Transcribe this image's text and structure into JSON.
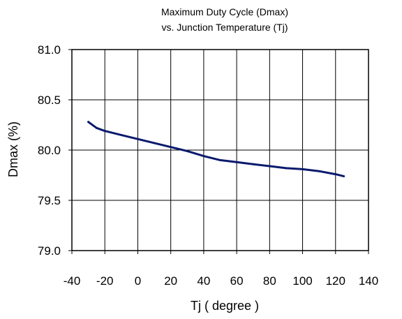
{
  "chart_data": {
    "type": "line",
    "title": "Maximum Duty Cycle (Dmax)",
    "subtitle": "vs. Junction Temperature (Tj)",
    "xlabel": "Tj ( degree )",
    "ylabel": "Dmax (%)",
    "xlim": [
      -40,
      140
    ],
    "ylim": [
      79.0,
      81.0
    ],
    "x_ticks": [
      -40,
      -20,
      0,
      20,
      40,
      60,
      80,
      100,
      120,
      140
    ],
    "x_tick_labels": [
      "-40",
      "-20",
      "0",
      "20",
      "40",
      "60",
      "80",
      "100",
      "120",
      "140"
    ],
    "y_ticks": [
      79.0,
      79.5,
      80.0,
      80.5,
      81.0
    ],
    "y_tick_labels": [
      "79.0",
      "79.5",
      "80.0",
      "80.5",
      "81.0"
    ],
    "grid": "vertical",
    "line_color": "#0a1a6e",
    "series": [
      {
        "x": [
          -30,
          -25,
          -20,
          -10,
          0,
          10,
          20,
          30,
          40,
          50,
          60,
          70,
          80,
          90,
          100,
          110,
          120,
          125
        ],
        "y": [
          80.28,
          80.22,
          80.19,
          80.15,
          80.11,
          80.07,
          80.03,
          79.99,
          79.94,
          79.9,
          79.88,
          79.86,
          79.84,
          79.82,
          79.81,
          79.79,
          79.76,
          79.74
        ]
      }
    ]
  }
}
